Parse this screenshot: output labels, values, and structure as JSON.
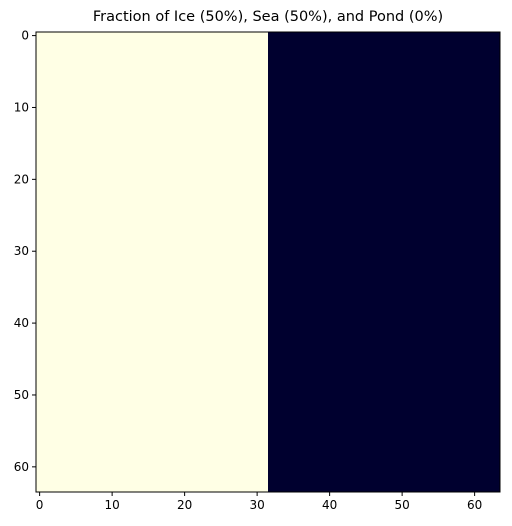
{
  "chart_data": {
    "type": "heatmap",
    "title": "Fraction of Ice (50%), Sea (50%), and Pond (0%)",
    "xlabel": "",
    "ylabel": "",
    "xlim": [
      -0.5,
      63.5
    ],
    "ylim": [
      63.5,
      -0.5
    ],
    "x_ticks": [
      0,
      10,
      20,
      30,
      40,
      50,
      60
    ],
    "y_ticks": [
      0,
      10,
      20,
      30,
      40,
      50,
      60
    ],
    "grid": false,
    "regions": [
      {
        "name": "Ice",
        "x_range": [
          0,
          31
        ],
        "y_range": [
          0,
          63
        ],
        "color": "#ffffe5"
      },
      {
        "name": "Sea",
        "x_range": [
          32,
          63
        ],
        "y_range": [
          0,
          63
        ],
        "color": "#00002f"
      }
    ],
    "fractions": {
      "ice": 50,
      "sea": 50,
      "pond": 0
    }
  }
}
